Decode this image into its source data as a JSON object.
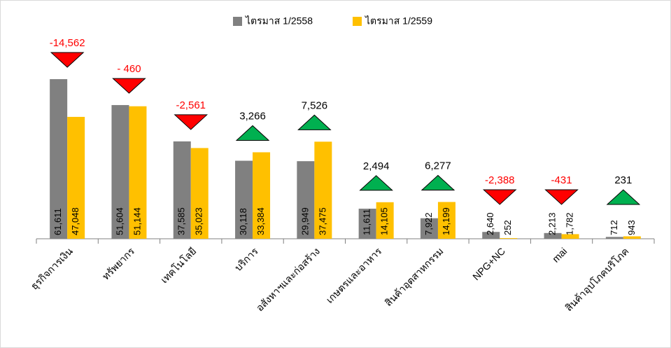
{
  "chart_data": {
    "type": "bar",
    "categories": [
      "ธุรกิจการเงิน",
      "ทรัพยากร",
      "เทคโนโลยี",
      "บริการ",
      "อสังหาฯและก่อสร้าง",
      "เกษตรและอาหาร",
      "สินค้าอุตสาหกรรม",
      "NPG+NC",
      "mai",
      "สินค้าอุปโภคบริโภค"
    ],
    "series": [
      {
        "name": "ไตรมาส 1/2558",
        "color": "#808080",
        "values": [
          61611,
          51604,
          37585,
          30118,
          29949,
          11611,
          7922,
          2640,
          2213,
          712
        ],
        "value_labels": [
          "61,611",
          "51,604",
          "37,585",
          "30,118",
          "29,949",
          "11,611",
          "7,922",
          "2,640",
          "2,213",
          "712"
        ]
      },
      {
        "name": "ไตรมาส 1/2559",
        "color": "#ffc000",
        "values": [
          47048,
          51144,
          35023,
          33384,
          37475,
          14105,
          14199,
          252,
          1782,
          943
        ],
        "value_labels": [
          "47,048",
          "51,144",
          "35,023",
          "33,384",
          "37,475",
          "14,105",
          "14,199",
          "252",
          "1,782",
          "943"
        ]
      }
    ],
    "changes": {
      "values": [
        -14562,
        -460,
        -2561,
        3266,
        7526,
        2494,
        6277,
        -2388,
        -431,
        231
      ],
      "value_labels": [
        "-14,562",
        "- 460",
        "-2,561",
        "3,266",
        "7,526",
        "2,494",
        "6,277",
        "-2,388",
        "-431",
        "231"
      ],
      "up_color": "#00b050",
      "down_color": "#ff0000"
    },
    "legend": "top"
  }
}
